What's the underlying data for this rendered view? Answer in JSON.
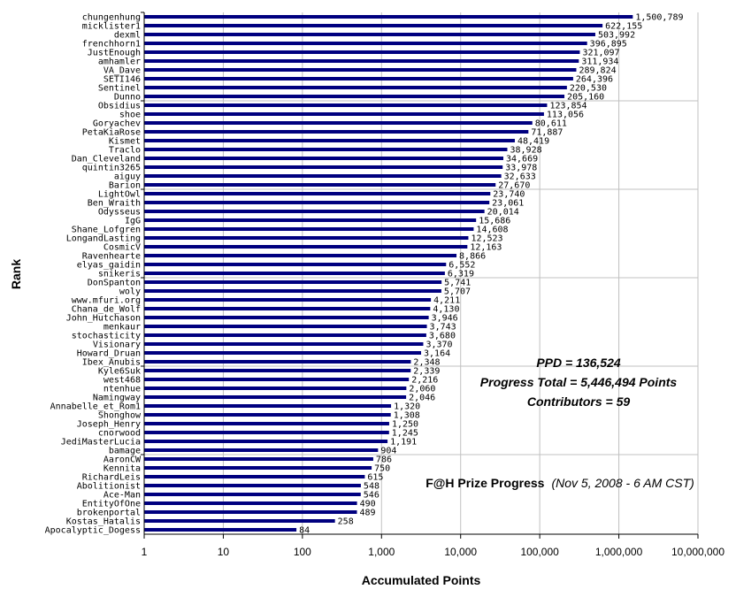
{
  "chart_data": {
    "type": "bar",
    "orientation": "horizontal",
    "x_scale": "log",
    "xlim": [
      1,
      10000000
    ],
    "grid": "vertical major gridlines at each decade",
    "bar_color": "#00007f",
    "xlabel": "Accumulated Points",
    "ylabel": "Rank",
    "x_ticks": [
      "1",
      "10",
      "100",
      "1,000",
      "10,000",
      "100,000",
      "1,000,000",
      "10,000,000"
    ],
    "title": "F@H Prize Progress",
    "subtitle": "(Nov 5, 2008 - 6 AM CST)",
    "annotations": [
      "PPD = 136,524",
      "Progress Total = 5,446,494 Points",
      "Contributors = 59"
    ],
    "categories": [
      "chungenhung",
      "micklister1",
      "dexml",
      "frenchhorn1",
      "JustEnough",
      "amhamler",
      "VA_Dave",
      "SETI146",
      "Sentinel",
      "Dunno",
      "Obsidius",
      "shoe",
      "Goryachev",
      "PetaKiaRose",
      "Kismet",
      "Traclo",
      "Dan_Cleveland",
      "quintin3265",
      "aiguy",
      "Barion",
      "LightOwl",
      "Ben_Wraith",
      "Odysseus",
      "IgG",
      "Shane_Lofgren",
      "LongandLasting",
      "CosmicV",
      "Ravenhearte",
      "elyas_gaidin",
      "snikeris",
      "DonSpanton",
      "woly",
      "www.mfuri.org",
      "Chana_de_Wolf",
      "John_Hutchason",
      "menkaur",
      "stochasticity",
      "Visionary",
      "Howard_Druan",
      "Ibex_Anubis",
      "Kyle6Suk",
      "west468",
      "ntenhue",
      "Namingway",
      "Annabelle_et_Rom1",
      "Shonghow",
      "Joseph_Henry",
      "cnorwood",
      "JediMasterLucia",
      "bamage",
      "AaronCW",
      "Kennita",
      "RichardLeis",
      "Abolitionist",
      "Ace-Man",
      "EntityOfOne",
      "brokenportal",
      "Kostas_Hatalis",
      "Apocalyptic_Dogess"
    ],
    "values": [
      1500789,
      622155,
      503992,
      396895,
      321097,
      311934,
      289824,
      264396,
      220530,
      205160,
      123854,
      113056,
      80611,
      71887,
      48419,
      38928,
      34669,
      33978,
      32633,
      27670,
      23740,
      23061,
      20014,
      15686,
      14608,
      12523,
      12163,
      8866,
      6552,
      6319,
      5741,
      5707,
      4211,
      4130,
      3946,
      3743,
      3680,
      3370,
      3164,
      2348,
      2339,
      2216,
      2060,
      2046,
      1320,
      1308,
      1250,
      1245,
      1191,
      904,
      786,
      750,
      615,
      548,
      546,
      490,
      489,
      258,
      84
    ],
    "value_labels": [
      "1,500,789",
      "622,155",
      "503,992",
      "396,895",
      "321,097",
      "311,934",
      "289,824",
      "264,396",
      "220,530",
      "205,160",
      "123,854",
      "113,056",
      "80,611",
      "71,887",
      "48,419",
      "38,928",
      "34,669",
      "33,978",
      "32,633",
      "27,670",
      "23,740",
      "23,061",
      "20,014",
      "15,686",
      "14,608",
      "12,523",
      "12,163",
      "8,866",
      "6,552",
      "6,319",
      "5,741",
      "5,707",
      "4,211",
      "4,130",
      "3,946",
      "3,743",
      "3,680",
      "3,370",
      "3,164",
      "2,348",
      "2,339",
      "2,216",
      "2,060",
      "2,046",
      "1,320",
      "1,308",
      "1,250",
      "1,245",
      "1,191",
      "904",
      "786",
      "750",
      "615",
      "548",
      "546",
      "490",
      "489",
      "258",
      "84"
    ]
  }
}
